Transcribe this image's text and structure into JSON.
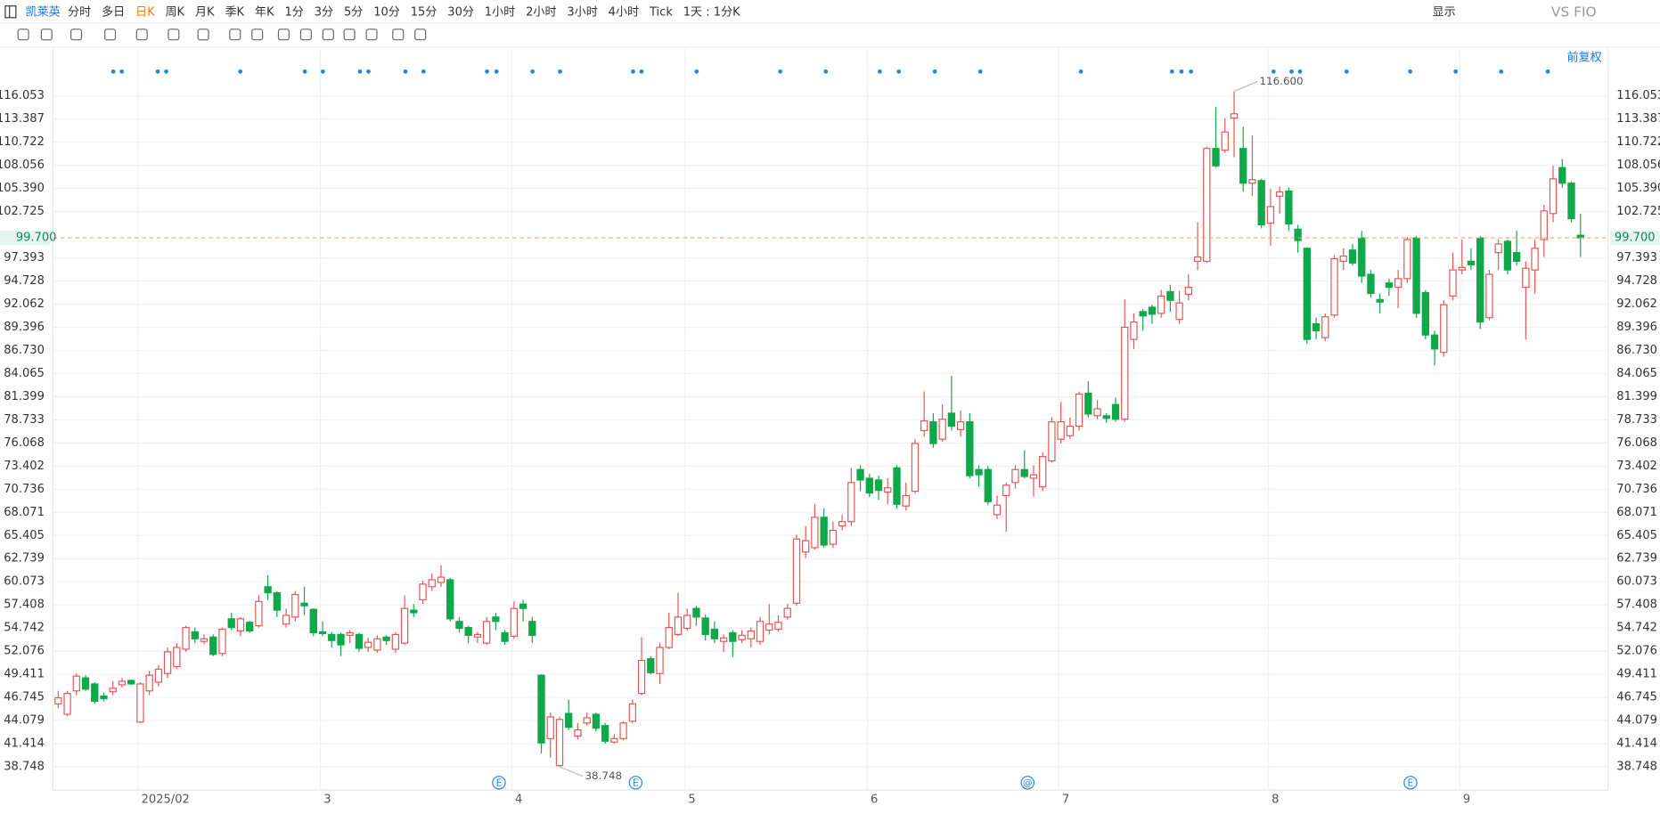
{
  "toolbar": {
    "symbol": "凯莱英",
    "periods": [
      "分时",
      "多日",
      "日K",
      "周K",
      "月K",
      "季K",
      "年K",
      "1分",
      "3分",
      "5分",
      "10分",
      "15分",
      "30分",
      "1小时",
      "2小时",
      "3小时",
      "4小时",
      "Tick",
      "1天 : 1分K"
    ],
    "active_period_index": 2,
    "display": "显示",
    "compare": "VS FIO",
    "adjust": "前复权"
  },
  "chart_data": {
    "type": "candlestick",
    "up_color": "#e35656",
    "down_color": "#0fa84a",
    "open": [
      46.0,
      44.8,
      47.5,
      49.0,
      48.3,
      46.9,
      47.4,
      48.2,
      48.7,
      43.9,
      47.5,
      48.5,
      49.5,
      50.3,
      52.3,
      54.3,
      53.2,
      53.7,
      51.8,
      55.8,
      54.4,
      55.4,
      55.0,
      59.5,
      58.8,
      55.2,
      56.0,
      57.6,
      56.9,
      54.3,
      54.0,
      54.0,
      53.9,
      54.0,
      52.5,
      52.2,
      53.7,
      52.3,
      53.0,
      56.8,
      58.0,
      59.5,
      60.0,
      60.3,
      55.5,
      54.8,
      53.7,
      53.0,
      56.0,
      54.2,
      53.8,
      57.5,
      55.5,
      49.3,
      42.0,
      38.9,
      44.9,
      42.3,
      43.8,
      44.8,
      43.5,
      41.6,
      42.0,
      44.0,
      47.2,
      51.2,
      49.5,
      52.5,
      54.0,
      54.7,
      57.0,
      55.9,
      54.6,
      53.2,
      54.2,
      53.4,
      53.5,
      53.2,
      54.5,
      54.6,
      56.0,
      57.6,
      63.5,
      64.0,
      67.5,
      64.4,
      66.5,
      67.0,
      73.0,
      72.0,
      71.8,
      70.4,
      73.2,
      68.8,
      70.5,
      77.5,
      78.5,
      76.5,
      79.5,
      77.6,
      78.5,
      73.0,
      73.0,
      67.8,
      70.0,
      71.5,
      73.0,
      72.0,
      71.0,
      74.0,
      76.5,
      76.9,
      78.0,
      81.8,
      79.2,
      79.2,
      80.5,
      78.8,
      88.0,
      91.2,
      91.7,
      91.0,
      93.5,
      90.3,
      93.2,
      97.0,
      97.0,
      110.0,
      109.8,
      113.5,
      110.0,
      106.0,
      106.3,
      101.4,
      104.5,
      105.1,
      100.7,
      98.5,
      89.8,
      88.2,
      90.8,
      97.0,
      98.3,
      99.7,
      95.5,
      92.6,
      94.5,
      94.0,
      95.0,
      99.7,
      93.4,
      88.5,
      86.5,
      93.0,
      96.0,
      97.0,
      99.7,
      90.5,
      98.0,
      99.3,
      98.0,
      94.0,
      96.0,
      99.5,
      102.5,
      107.8,
      106.0,
      100.0
    ],
    "high": [
      47.5,
      47.5,
      49.5,
      49.3,
      48.5,
      47.3,
      48.6,
      49.0,
      48.8,
      48.5,
      49.8,
      50.5,
      52.5,
      53.0,
      55.0,
      54.8,
      54.0,
      54.0,
      54.8,
      56.5,
      56.0,
      55.6,
      58.5,
      60.8,
      59.0,
      57.0,
      59.0,
      59.5,
      57.0,
      55.5,
      54.3,
      54.2,
      54.5,
      54.2,
      53.6,
      53.9,
      53.9,
      54.3,
      58.5,
      57.5,
      60.2,
      61.0,
      62.0,
      60.5,
      56.0,
      55.0,
      54.3,
      56.0,
      56.5,
      54.5,
      57.8,
      58.0,
      56.0,
      49.4,
      45.0,
      44.5,
      46.5,
      43.8,
      45.0,
      45.0,
      43.8,
      42.5,
      44.0,
      46.5,
      53.7,
      51.5,
      53.0,
      56.5,
      58.8,
      57.0,
      57.3,
      56.3,
      55.5,
      54.0,
      54.5,
      54.5,
      54.8,
      56.0,
      57.5,
      56.2,
      57.5,
      65.5,
      66.5,
      69.0,
      68.5,
      67.0,
      67.8,
      73.2,
      73.5,
      72.5,
      72.3,
      72.0,
      73.5,
      71.5,
      76.5,
      82.0,
      79.5,
      80.5,
      83.8,
      79.8,
      79.5,
      73.5,
      73.4,
      70.0,
      71.5,
      73.5,
      75.2,
      73.5,
      75.0,
      79.0,
      80.8,
      79.0,
      82.0,
      83.2,
      81.0,
      79.5,
      81.3,
      92.6,
      91.0,
      91.5,
      92.0,
      93.7,
      94.3,
      93.6,
      95.5,
      101.5,
      110.2,
      114.8,
      113.5,
      116.6,
      112.5,
      111.5,
      106.5,
      105.3,
      105.6,
      105.5,
      101.2,
      98.6,
      90.5,
      91.0,
      97.7,
      98.5,
      99.0,
      100.5,
      96.0,
      93.3,
      95.0,
      96.0,
      99.8,
      99.9,
      93.7,
      89.0,
      92.5,
      98.0,
      99.5,
      98.5,
      99.9,
      96.0,
      99.5,
      99.5,
      100.5,
      97.0,
      99.5,
      103.5,
      108.0,
      108.8,
      106.2,
      102.5
    ],
    "low": [
      45.5,
      44.6,
      47.0,
      47.5,
      46.0,
      46.3,
      47.0,
      47.9,
      48.2,
      43.8,
      47.0,
      48.0,
      49.0,
      50.0,
      52.0,
      53.0,
      52.9,
      51.5,
      51.5,
      54.5,
      53.8,
      54.2,
      54.8,
      58.0,
      56.0,
      54.8,
      55.5,
      56.2,
      53.8,
      53.8,
      52.5,
      51.5,
      53.0,
      52.0,
      52.0,
      51.9,
      52.8,
      51.9,
      52.8,
      56.0,
      57.5,
      59.0,
      59.5,
      55.5,
      54.2,
      53.0,
      53.0,
      52.8,
      54.5,
      52.8,
      53.5,
      55.5,
      53.0,
      40.3,
      39.8,
      38.748,
      43.0,
      41.9,
      43.5,
      42.8,
      41.4,
      41.4,
      41.8,
      43.8,
      47.0,
      49.4,
      48.3,
      52.3,
      53.8,
      54.4,
      55.0,
      53.3,
      53.0,
      52.0,
      51.4,
      53.0,
      52.5,
      52.8,
      54.0,
      54.3,
      55.7,
      57.3,
      62.8,
      63.8,
      64.0,
      64.0,
      66.0,
      66.5,
      70.5,
      69.8,
      69.5,
      69.0,
      68.5,
      68.3,
      70.2,
      76.8,
      75.5,
      76.2,
      77.5,
      76.8,
      72.0,
      71.0,
      68.9,
      67.3,
      65.8,
      70.8,
      72.0,
      69.9,
      70.5,
      73.8,
      76.0,
      76.5,
      77.5,
      79.0,
      78.8,
      78.4,
      78.5,
      78.5,
      86.9,
      89.0,
      89.8,
      90.5,
      91.2,
      89.8,
      92.5,
      96.0,
      96.8,
      107.8,
      109.5,
      109.0,
      105.0,
      104.5,
      100.8,
      98.8,
      102.5,
      100.5,
      98.0,
      87.5,
      88.0,
      87.8,
      90.5,
      96.0,
      96.5,
      94.5,
      92.8,
      91.0,
      93.0,
      91.6,
      94.5,
      90.5,
      88.0,
      85.0,
      86.0,
      92.5,
      95.5,
      96.0,
      89.2,
      90.2,
      96.0,
      95.5,
      96.5,
      88.0,
      93.3,
      97.5,
      101.5,
      105.5,
      101.5,
      97.5
    ],
    "close": [
      46.7,
      47.2,
      49.2,
      47.7,
      46.3,
      46.6,
      47.8,
      48.6,
      48.3,
      48.3,
      49.3,
      50.0,
      52.0,
      52.5,
      54.8,
      53.5,
      53.5,
      51.7,
      54.6,
      54.8,
      55.8,
      54.4,
      57.8,
      58.8,
      56.8,
      56.2,
      58.6,
      57.3,
      54.2,
      54.1,
      53.3,
      52.8,
      54.2,
      52.4,
      53.1,
      53.5,
      53.3,
      54.0,
      57.0,
      56.5,
      59.8,
      60.3,
      60.6,
      55.8,
      54.7,
      53.9,
      54.0,
      55.5,
      55.5,
      53.2,
      57.0,
      57.0,
      53.9,
      41.5,
      44.5,
      44.2,
      43.3,
      43.0,
      44.4,
      43.2,
      41.7,
      42.0,
      43.8,
      46.0,
      51.0,
      49.6,
      52.5,
      54.8,
      56.0,
      56.2,
      56.0,
      54.0,
      53.5,
      53.6,
      53.2,
      53.9,
      54.4,
      55.5,
      55.2,
      55.4,
      57.0,
      65.0,
      64.8,
      67.5,
      64.3,
      66.0,
      67.0,
      71.5,
      71.8,
      70.3,
      70.6,
      70.9,
      69.0,
      70.0,
      76.0,
      78.6,
      76.0,
      78.8,
      78.0,
      78.5,
      72.3,
      72.4,
      69.3,
      68.9,
      71.2,
      73.0,
      72.2,
      72.4,
      74.5,
      78.5,
      78.5,
      78.0,
      81.7,
      79.4,
      80.0,
      78.9,
      78.8,
      89.4,
      90.0,
      90.7,
      90.9,
      93.0,
      92.5,
      92.2,
      94.0,
      97.5,
      110.0,
      108.0,
      111.9,
      114.0,
      106.0,
      106.4,
      101.2,
      103.3,
      105.0,
      101.3,
      99.4,
      88.0,
      89.0,
      90.6,
      97.3,
      97.6,
      96.8,
      95.3,
      93.3,
      92.3,
      94.0,
      95.0,
      99.5,
      91.0,
      88.5,
      86.9,
      92.0,
      96.0,
      96.3,
      96.6,
      90.0,
      95.5,
      99.0,
      96.0,
      97.0,
      96.2,
      98.5,
      102.8,
      106.5,
      106.0,
      101.9,
      99.7
    ],
    "xticks": [
      {
        "value": 9,
        "label": "2025/02"
      },
      {
        "value": 29,
        "label": "3"
      },
      {
        "value": 50,
        "label": "4"
      },
      {
        "value": 69,
        "label": "5"
      },
      {
        "value": 89,
        "label": "6"
      },
      {
        "value": 110,
        "label": "7"
      },
      {
        "value": 133,
        "label": "8"
      },
      {
        "value": 154,
        "label": "9"
      }
    ],
    "ylim": [
      36.07,
      121.3
    ],
    "yticks": [
      38.748,
      41.414,
      44.079,
      46.745,
      49.411,
      52.076,
      54.742,
      57.408,
      60.073,
      62.739,
      65.405,
      68.071,
      70.736,
      73.402,
      76.068,
      78.733,
      81.399,
      84.065,
      {
        "value": 86.73,
        "label": "86.730"
      },
      89.396,
      92.062,
      94.728,
      97.393,
      102.725,
      {
        "value": 105.39,
        "label": "105.390"
      },
      108.056,
      110.722,
      113.387,
      116.053
    ],
    "grid": true,
    "last_price": {
      "value": 99.7,
      "label": "99.700"
    },
    "annotations": [
      {
        "value": 116.6,
        "label": "116.600"
      },
      {
        "value": 38.748,
        "label": "38.748"
      }
    ],
    "events": [
      "E",
      "E",
      "@",
      "E"
    ]
  }
}
